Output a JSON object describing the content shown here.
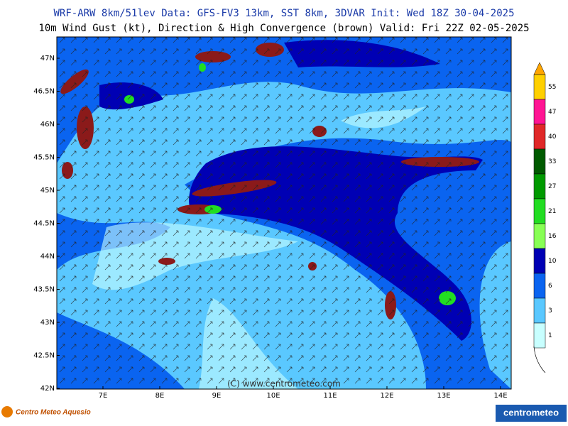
{
  "header": {
    "title": "WRF-ARW 8km/51lev  Data: GFS-FV3 13km, SST 8km, 3DVAR  Init: Wed 18Z 30-04-2025",
    "subtitle": "10m Wind Gust (kt), Direction & High Convergence (brown)  Valid: Fri 22Z 02-05-2025"
  },
  "map": {
    "lat_labels": [
      "47N",
      "46.5N",
      "46N",
      "45.5N",
      "45N",
      "44.5N",
      "44N",
      "43.5N",
      "43N",
      "42.5N",
      "42N"
    ],
    "lon_labels": [
      "7E",
      "8E",
      "9E",
      "10E",
      "11E",
      "12E",
      "13E",
      "14E"
    ],
    "watermark": "(C) www.centrometeo.com"
  },
  "legend": {
    "levels": [
      {
        "label": "55",
        "color": "#ffd000"
      },
      {
        "label": "47",
        "color": "#ff1493"
      },
      {
        "label": "40",
        "color": "#e02828"
      },
      {
        "label": "33",
        "color": "#005a00"
      },
      {
        "label": "27",
        "color": "#009a00"
      },
      {
        "label": "21",
        "color": "#22dd22"
      },
      {
        "label": "16",
        "color": "#88ff55"
      },
      {
        "label": "10",
        "color": "#0000b4"
      },
      {
        "label": "6",
        "color": "#0a64f0"
      },
      {
        "label": "3",
        "color": "#5ac8ff"
      },
      {
        "label": "1",
        "color": "#c8ffff"
      }
    ]
  },
  "footer": {
    "left_logo": "Centro Meteo Aquesio",
    "right_logo": "centrometeo"
  }
}
